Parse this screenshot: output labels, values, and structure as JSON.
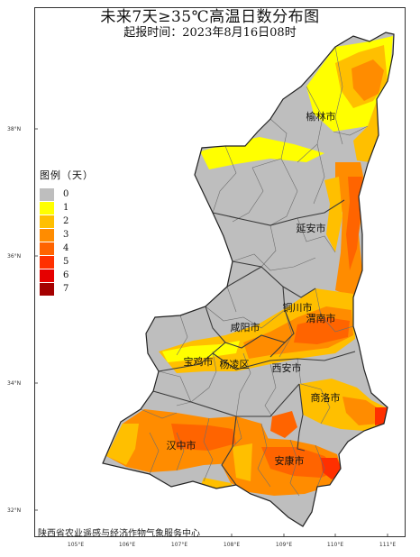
{
  "map": {
    "title": "未来7天≥35℃高温日数分布图",
    "subtitle": "起报时间：2023年8月16日08时",
    "source": "陕西省农业遥感与经济作物气象服务中心",
    "legend": {
      "title": "图例（天）",
      "items": [
        {
          "label": "0",
          "color": "#bebebe"
        },
        {
          "label": "1",
          "color": "#ffff00"
        },
        {
          "label": "2",
          "color": "#ffbf00"
        },
        {
          "label": "3",
          "color": "#ff8c00"
        },
        {
          "label": "4",
          "color": "#ff6400"
        },
        {
          "label": "5",
          "color": "#ff3000"
        },
        {
          "label": "6",
          "color": "#e60000"
        },
        {
          "label": "7",
          "color": "#a50000"
        }
      ]
    },
    "latitude_labels": [
      "38°N",
      "36°N",
      "34°N",
      "32°N"
    ],
    "longitude_labels": [
      "105°E",
      "106°E",
      "107°E",
      "108°E",
      "109°E",
      "110°E",
      "111°E"
    ],
    "cities": {
      "yulin": "榆林市",
      "yanan": "延安市",
      "tongchuan": "铜川市",
      "weinan": "渭南市",
      "xianyang": "咸阳市",
      "baoji": "宝鸡市",
      "yangling": "杨凌区",
      "xian": "西安市",
      "shangluo": "商洛市",
      "hanzhong": "汉中市",
      "ankang": "安康市"
    }
  }
}
